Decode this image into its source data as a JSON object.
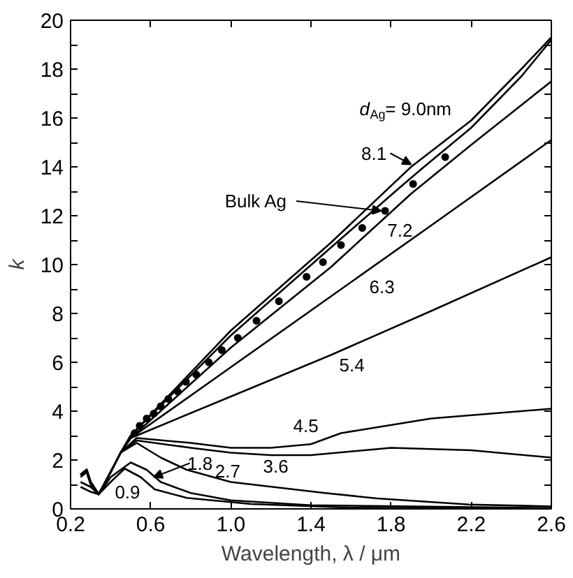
{
  "chart_data": {
    "type": "line",
    "xlabel": "Wavelength, λ / μm",
    "ylabel": "k",
    "xlim": [
      0.2,
      2.6
    ],
    "xticks": [
      0.2,
      0.6,
      {
        "value": 1.0,
        "label": "1.0"
      },
      1.4,
      1.8,
      2.2,
      2.6
    ],
    "ylim": [
      0,
      20
    ],
    "yticks": [
      0,
      {
        "value": 1,
        "label": null
      },
      2,
      {
        "value": 3,
        "label": null
      },
      4,
      {
        "value": 5,
        "label": null
      },
      6,
      {
        "value": 7,
        "label": null
      },
      8,
      {
        "value": 9,
        "label": null
      },
      10,
      {
        "value": 11,
        "label": null
      },
      12,
      {
        "value": 13,
        "label": null
      },
      14,
      {
        "value": 15,
        "label": null
      },
      16,
      {
        "value": 17,
        "label": null
      },
      18,
      {
        "value": 19,
        "label": null
      },
      20
    ],
    "grid": false,
    "marker": "none",
    "line_style": "solid",
    "series": [
      {
        "color": "#000000",
        "x": [
          0.25,
          0.28,
          0.3,
          0.34,
          0.4,
          0.45,
          0.5,
          1.0,
          1.5,
          1.9,
          2.2,
          2.45,
          2.6
        ],
        "values": [
          1.4,
          1.6,
          1.1,
          0.6,
          1.5,
          2.3,
          3.0,
          7.3,
          10.9,
          14.0,
          15.9,
          18.0,
          19.3
        ]
      },
      {
        "color": "#000000",
        "x": [
          0.25,
          0.28,
          0.3,
          0.34,
          0.4,
          0.45,
          0.5,
          1.0,
          1.5,
          1.85,
          1.95,
          2.2,
          2.45,
          2.6
        ],
        "values": [
          1.4,
          1.6,
          1.1,
          0.6,
          1.5,
          2.3,
          3.0,
          7.1,
          10.7,
          13.2,
          13.9,
          15.6,
          17.7,
          19.2
        ]
      },
      {
        "color": "#000000",
        "x": [
          0.25,
          0.28,
          0.3,
          0.34,
          0.4,
          0.45,
          0.5,
          1.0,
          1.5,
          1.9,
          2.2,
          2.6
        ],
        "values": [
          1.4,
          1.6,
          1.1,
          0.6,
          1.5,
          2.3,
          2.9,
          6.6,
          9.9,
          12.9,
          14.9,
          17.5
        ]
      },
      {
        "color": "#000000",
        "x": [
          0.25,
          0.28,
          0.3,
          0.34,
          0.4,
          0.45,
          0.5,
          1.0,
          1.5,
          2.0,
          2.6
        ],
        "values": [
          1.4,
          1.6,
          1.1,
          0.6,
          1.5,
          2.3,
          2.9,
          5.8,
          8.7,
          11.6,
          15.1
        ]
      },
      {
        "color": "#000000",
        "x": [
          0.25,
          0.28,
          0.3,
          0.34,
          0.4,
          0.45,
          0.5,
          1.0,
          1.5,
          2.0,
          2.6
        ],
        "values": [
          1.4,
          1.6,
          1.1,
          0.6,
          1.5,
          2.3,
          2.9,
          4.6,
          6.3,
          8.1,
          10.3
        ]
      },
      {
        "color": "#000000",
        "x": [
          0.25,
          0.28,
          0.3,
          0.34,
          0.4,
          0.45,
          0.53,
          0.8,
          1.0,
          1.2,
          1.4,
          1.55,
          2.0,
          2.6
        ],
        "values": [
          1.4,
          1.6,
          1.1,
          0.6,
          1.5,
          2.3,
          2.9,
          2.7,
          2.5,
          2.5,
          2.65,
          3.1,
          3.7,
          4.1
        ]
      },
      {
        "color": "#000000",
        "x": [
          0.25,
          0.28,
          0.3,
          0.34,
          0.4,
          0.45,
          0.53,
          0.8,
          1.0,
          1.2,
          1.4,
          1.8,
          2.2,
          2.6
        ],
        "values": [
          1.4,
          1.6,
          1.1,
          0.6,
          1.5,
          2.3,
          2.8,
          2.5,
          2.3,
          2.2,
          2.2,
          2.5,
          2.4,
          2.1
        ]
      },
      {
        "color": "#000000",
        "x": [
          0.25,
          0.28,
          0.3,
          0.34,
          0.45,
          0.53,
          0.65,
          0.78,
          1.0,
          1.47,
          1.73,
          2.19,
          2.6
        ],
        "values": [
          1.3,
          1.5,
          1.0,
          0.6,
          2.3,
          2.7,
          2.1,
          1.6,
          1.1,
          0.65,
          0.43,
          0.18,
          0.1
        ]
      },
      {
        "color": "#000000",
        "x": [
          0.25,
          0.3,
          0.34,
          0.4,
          0.5,
          0.58,
          0.65,
          0.8,
          1.0,
          1.4,
          2.6
        ],
        "values": [
          1.1,
          0.9,
          0.6,
          1.3,
          1.9,
          1.6,
          1.1,
          0.65,
          0.35,
          0.15,
          0.03
        ]
      },
      {
        "color": "#000000",
        "x": [
          0.25,
          0.3,
          0.34,
          0.4,
          0.47,
          0.55,
          0.62,
          0.78,
          1.1,
          1.6,
          2.6
        ],
        "values": [
          0.9,
          0.7,
          0.6,
          1.1,
          1.65,
          1.3,
          0.8,
          0.45,
          0.2,
          0.05,
          0.0
        ]
      },
      {
        "type": "scatter",
        "marker": "circle",
        "color": "#000000",
        "x": [
          0.52,
          0.545,
          0.58,
          0.615,
          0.65,
          0.688,
          0.735,
          0.776,
          0.827,
          0.89,
          0.955,
          1.035,
          1.128,
          1.24,
          1.378,
          1.46,
          1.55,
          1.656,
          1.74,
          1.77,
          1.91,
          2.07
        ],
        "values": [
          3.1,
          3.4,
          3.7,
          3.9,
          4.2,
          4.5,
          4.8,
          5.2,
          5.5,
          6.0,
          6.5,
          7.0,
          7.7,
          8.5,
          9.5,
          10.1,
          10.8,
          11.5,
          null,
          12.2,
          13.3,
          14.4
        ]
      }
    ],
    "annotations": [
      {
        "text": "d$_{Ag}$= 9.0nm",
        "x": 2.1,
        "y": 15.3
      },
      {
        "text": "8.1",
        "x": 1.9,
        "y": 14.1
      },
      {
        "text": "Bulk Ag",
        "x": 1.75,
        "y": 12.2
      },
      {
        "text": "7.2",
        "x": 1.86,
        "y": 12.6
      },
      {
        "text": "6.3",
        "x": 1.77,
        "y": 10.3
      },
      {
        "text": "5.4",
        "x": 1.62,
        "y": 6.7
      },
      {
        "text": "4.5",
        "x": 1.39,
        "y": 2.6
      },
      {
        "text": "3.6",
        "x": 1.24,
        "y": 2.2
      },
      {
        "text": "2.7",
        "x": 1.0,
        "y": 1.1
      },
      {
        "text": "1.8",
        "x": 0.615,
        "y": 1.3
      },
      {
        "text": "0.9",
        "x": 0.5,
        "y": 1.5
      }
    ]
  }
}
